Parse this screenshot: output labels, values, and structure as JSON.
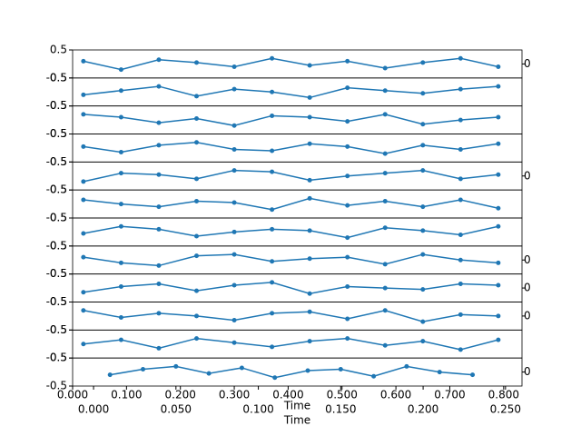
{
  "chart_data": [
    {
      "type": "line",
      "color": "#1f77b4",
      "xlim": [
        0,
        0.834
      ],
      "ylim": [
        -0.5,
        0.5
      ],
      "yticks": [
        -0.5,
        0.5
      ],
      "y2lim": [
        -1,
        1
      ],
      "y2ticks": [
        0
      ],
      "x": [
        0.02,
        0.09,
        0.16,
        0.23,
        0.3,
        0.37,
        0.44,
        0.51,
        0.58,
        0.65,
        0.72,
        0.79
      ],
      "values": [
        0.1,
        -0.2,
        0.15,
        0.05,
        -0.1,
        0.2,
        -0.05,
        0.1,
        -0.15,
        0.05,
        0.2,
        -0.1
      ]
    },
    {
      "type": "line",
      "color": "#1f77b4",
      "xlim": [
        0,
        0.834
      ],
      "ylim": [
        -0.5,
        0.5
      ],
      "yticks": [
        -0.5,
        0.5
      ],
      "x": [
        0.02,
        0.09,
        0.16,
        0.23,
        0.3,
        0.37,
        0.44,
        0.51,
        0.58,
        0.65,
        0.72,
        0.79
      ],
      "values": [
        -0.1,
        0.05,
        0.2,
        -0.15,
        0.1,
        0.0,
        -0.2,
        0.15,
        0.05,
        -0.05,
        0.1,
        0.2
      ]
    },
    {
      "type": "line",
      "color": "#1f77b4",
      "xlim": [
        0,
        0.834
      ],
      "ylim": [
        -0.5,
        0.5
      ],
      "yticks": [
        -0.5,
        0.5
      ],
      "x": [
        0.02,
        0.09,
        0.16,
        0.23,
        0.3,
        0.37,
        0.44,
        0.51,
        0.58,
        0.65,
        0.72,
        0.79
      ],
      "values": [
        0.2,
        0.1,
        -0.1,
        0.05,
        -0.2,
        0.15,
        0.1,
        -0.05,
        0.2,
        -0.15,
        0.0,
        0.1
      ]
    },
    {
      "type": "line",
      "color": "#1f77b4",
      "xlim": [
        0,
        0.834
      ],
      "ylim": [
        -0.5,
        0.5
      ],
      "yticks": [
        -0.5,
        0.5
      ],
      "x": [
        0.02,
        0.09,
        0.16,
        0.23,
        0.3,
        0.37,
        0.44,
        0.51,
        0.58,
        0.65,
        0.72,
        0.79
      ],
      "values": [
        0.05,
        -0.15,
        0.1,
        0.2,
        -0.05,
        -0.1,
        0.15,
        0.05,
        -0.2,
        0.1,
        -0.05,
        0.15
      ]
    },
    {
      "type": "line",
      "color": "#1f77b4",
      "xlim": [
        0,
        0.834
      ],
      "ylim": [
        -0.5,
        0.5
      ],
      "yticks": [
        -0.5,
        0.5
      ],
      "y2lim": [
        -1,
        1
      ],
      "y2ticks": [
        0
      ],
      "x": [
        0.02,
        0.09,
        0.16,
        0.23,
        0.3,
        0.37,
        0.44,
        0.51,
        0.58,
        0.65,
        0.72,
        0.79
      ],
      "values": [
        -0.2,
        0.1,
        0.05,
        -0.1,
        0.2,
        0.15,
        -0.15,
        0.0,
        0.1,
        0.2,
        -0.1,
        0.05
      ]
    },
    {
      "type": "line",
      "color": "#1f77b4",
      "xlim": [
        0,
        0.834
      ],
      "ylim": [
        -0.5,
        0.5
      ],
      "yticks": [
        -0.5,
        0.5
      ],
      "x": [
        0.02,
        0.09,
        0.16,
        0.23,
        0.3,
        0.37,
        0.44,
        0.51,
        0.58,
        0.65,
        0.72,
        0.79
      ],
      "values": [
        0.15,
        0.0,
        -0.1,
        0.1,
        0.05,
        -0.2,
        0.2,
        -0.05,
        0.1,
        -0.1,
        0.15,
        -0.15
      ]
    },
    {
      "type": "line",
      "color": "#1f77b4",
      "xlim": [
        0,
        0.834
      ],
      "ylim": [
        -0.5,
        0.5
      ],
      "yticks": [
        -0.5,
        0.5
      ],
      "x": [
        0.02,
        0.09,
        0.16,
        0.23,
        0.3,
        0.37,
        0.44,
        0.51,
        0.58,
        0.65,
        0.72,
        0.79
      ],
      "values": [
        -0.05,
        0.2,
        0.1,
        -0.15,
        0.0,
        0.1,
        0.05,
        -0.2,
        0.15,
        0.05,
        -0.1,
        0.2
      ]
    },
    {
      "type": "line",
      "color": "#1f77b4",
      "xlim": [
        0,
        0.834
      ],
      "ylim": [
        -0.5,
        0.5
      ],
      "yticks": [
        -0.5,
        0.5
      ],
      "y2lim": [
        -1,
        1
      ],
      "y2ticks": [
        0
      ],
      "x": [
        0.02,
        0.09,
        0.16,
        0.23,
        0.3,
        0.37,
        0.44,
        0.51,
        0.58,
        0.65,
        0.72,
        0.79
      ],
      "values": [
        0.1,
        -0.1,
        -0.2,
        0.15,
        0.2,
        -0.05,
        0.05,
        0.1,
        -0.15,
        0.2,
        0.0,
        -0.1
      ]
    },
    {
      "type": "line",
      "color": "#1f77b4",
      "xlim": [
        0,
        0.834
      ],
      "ylim": [
        -0.5,
        0.5
      ],
      "yticks": [
        -0.5,
        0.5
      ],
      "y2lim": [
        -1,
        1
      ],
      "y2ticks": [
        0
      ],
      "x": [
        0.02,
        0.09,
        0.16,
        0.23,
        0.3,
        0.37,
        0.44,
        0.51,
        0.58,
        0.65,
        0.72,
        0.79
      ],
      "values": [
        -0.15,
        0.05,
        0.15,
        -0.1,
        0.1,
        0.2,
        -0.2,
        0.05,
        0.0,
        -0.05,
        0.15,
        0.1
      ]
    },
    {
      "type": "line",
      "color": "#1f77b4",
      "xlim": [
        0,
        0.834
      ],
      "ylim": [
        -0.5,
        0.5
      ],
      "yticks": [
        -0.5,
        0.5
      ],
      "y2lim": [
        -1,
        1
      ],
      "y2ticks": [
        0
      ],
      "x": [
        0.02,
        0.09,
        0.16,
        0.23,
        0.3,
        0.37,
        0.44,
        0.51,
        0.58,
        0.65,
        0.72,
        0.79
      ],
      "values": [
        0.2,
        -0.05,
        0.1,
        0.0,
        -0.15,
        0.1,
        0.15,
        -0.1,
        0.2,
        -0.2,
        0.05,
        0.0
      ]
    },
    {
      "type": "line",
      "color": "#1f77b4",
      "xlim": [
        0,
        0.834
      ],
      "ylim": [
        -0.5,
        0.5
      ],
      "yticks": [
        -0.5,
        0.5
      ],
      "xlabel": "Time",
      "xticks": [
        {
          "value": 0,
          "label": "0.000"
        },
        {
          "value": 0.1,
          "label": "0.100"
        },
        {
          "value": 0.2,
          "label": "0.200"
        },
        {
          "value": 0.3,
          "label": "0.300"
        },
        {
          "value": 0.4,
          "label": "0.400"
        },
        {
          "value": 0.5,
          "label": "0.500"
        },
        {
          "value": 0.6,
          "label": "0.600"
        },
        {
          "value": 0.7,
          "label": "0.700"
        },
        {
          "value": 0.8,
          "label": "0.800"
        }
      ],
      "x": [
        0.02,
        0.09,
        0.16,
        0.23,
        0.3,
        0.37,
        0.44,
        0.51,
        0.58,
        0.65,
        0.72,
        0.79
      ],
      "values": [
        0.0,
        0.15,
        -0.15,
        0.2,
        0.05,
        -0.1,
        0.1,
        0.2,
        -0.05,
        0.1,
        -0.2,
        0.15
      ]
    },
    {
      "type": "line",
      "color": "#1f77b4",
      "xlim": [
        -0.0127,
        0.26
      ],
      "ylim": [
        -0.5,
        0.5
      ],
      "yticks": [
        -0.5,
        0.5
      ],
      "y2lim": [
        -1,
        1
      ],
      "y2ticks": [
        0
      ],
      "xlabel": "Time",
      "xticks": [
        {
          "value": 0,
          "label": "0.000"
        },
        {
          "value": 0.05,
          "label": "0.050"
        },
        {
          "value": 0.1,
          "label": "0.100"
        },
        {
          "value": 0.15,
          "label": "0.150"
        },
        {
          "value": 0.2,
          "label": "0.200"
        },
        {
          "value": 0.25,
          "label": "0.250"
        }
      ],
      "x": [
        0.01,
        0.03,
        0.05,
        0.07,
        0.09,
        0.11,
        0.13,
        0.15,
        0.17,
        0.19,
        0.21,
        0.23
      ],
      "values": [
        -0.1,
        0.1,
        0.2,
        -0.05,
        0.15,
        -0.2,
        0.05,
        0.1,
        -0.15,
        0.2,
        0.0,
        -0.1
      ]
    }
  ]
}
